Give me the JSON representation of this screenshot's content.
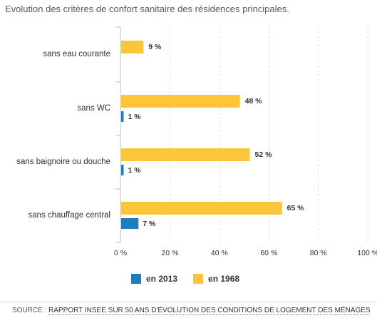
{
  "title": "Evolution des critères de confort sanitaire des résidences principales.",
  "legend": [
    {
      "label": "en 2013",
      "color": "#1f7dbf"
    },
    {
      "label": "en 1968",
      "color": "#fcc63a"
    }
  ],
  "source": {
    "prefix": "SOURCE : ",
    "link_text": "RAPPORT INSEE SUR 50 ANS D'ÉVOLUTION DES CONDITIONS DE LOGEMENT DES MÉNAGES"
  },
  "chart_data": {
    "type": "bar",
    "orientation": "horizontal",
    "categories": [
      "sans eau courante",
      "sans WC",
      "sans baignoire ou douche",
      "sans chauffage central"
    ],
    "series": [
      {
        "name": "en 1968",
        "color": "#fcc63a",
        "values": [
          9,
          48,
          52,
          65
        ],
        "labels": [
          "9 %",
          "48 %",
          "52 %",
          "65 %"
        ]
      },
      {
        "name": "en 2013",
        "color": "#1f7dbf",
        "values": [
          null,
          1,
          1,
          7
        ],
        "labels": [
          "",
          "1 %",
          "1 %",
          "7 %"
        ]
      }
    ],
    "x_ticks": [
      "0 %",
      "20 %",
      "40 %",
      "60 %",
      "80 %",
      "100 %"
    ],
    "xlim": [
      0,
      100
    ],
    "grid": "vertical dashed lines",
    "legend_position": "bottom"
  }
}
